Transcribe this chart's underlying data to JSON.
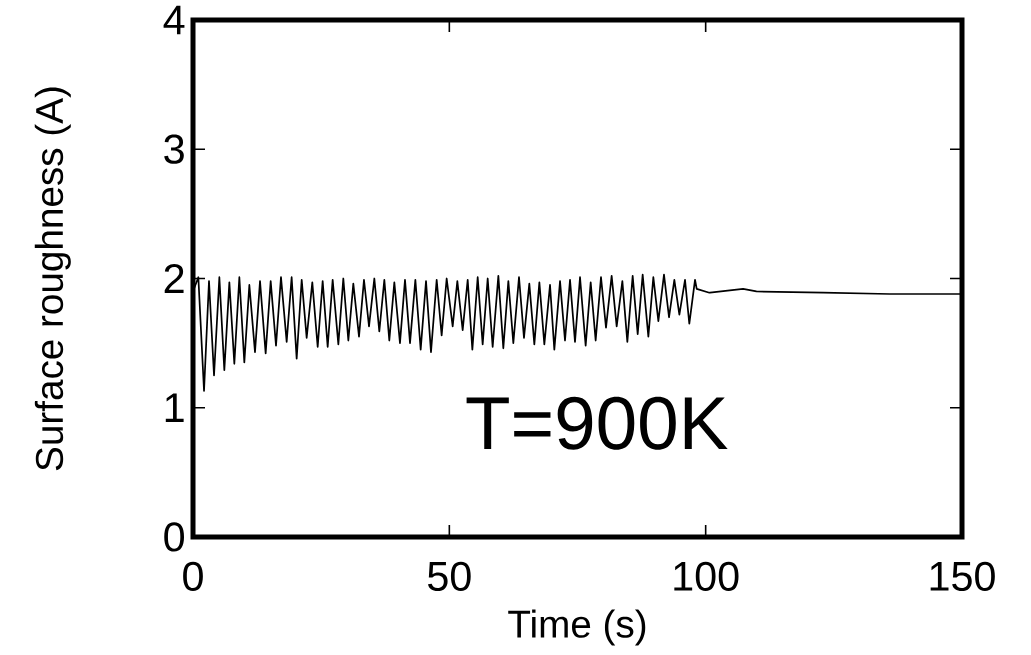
{
  "chart_data": {
    "type": "line",
    "xlabel": "Time (s)",
    "ylabel": "Surface roughness (A)",
    "annotations": [
      "T=900K"
    ],
    "xlim": [
      0,
      150
    ],
    "ylim": [
      0,
      4
    ],
    "xticks": [
      0,
      50,
      100,
      150
    ],
    "yticks": [
      0,
      1,
      2,
      3,
      4
    ],
    "marker": "none",
    "line_style": "solid",
    "series": [
      {
        "color": "#000000",
        "x": [
          0,
          1.04,
          2.15,
          3.12,
          4.1,
          5.14,
          6.11,
          7.09,
          8.06,
          9.04,
          10.01,
          10.99,
          12.09,
          13.07,
          14.17,
          15.15,
          16.19,
          17.16,
          18.27,
          19.24,
          20.22,
          21.2,
          22.17,
          23.27,
          24.32,
          25.29,
          26.27,
          27.24,
          28.35,
          29.32,
          30.3,
          31.27,
          32.38,
          33.35,
          34.33,
          35.37,
          36.34,
          37.32,
          38.29,
          39.27,
          40.37,
          41.35,
          42.33,
          43.37,
          44.41,
          45.45,
          46.42,
          47.53,
          48.5,
          49.48,
          50.65,
          51.56,
          52.6,
          53.58,
          54.49,
          55.53,
          56.5,
          57.48,
          58.45,
          59.56,
          60.53,
          61.51,
          62.48,
          63.59,
          64.56,
          65.6,
          66.58,
          67.56,
          68.53,
          69.64,
          70.48,
          71.59,
          72.56,
          73.54,
          74.51,
          75.49,
          76.59,
          77.57,
          78.54,
          79.58,
          80.56,
          81.66,
          82.64,
          83.75,
          84.72,
          85.76,
          86.74,
          87.71,
          88.82,
          89.79,
          90.77,
          91.87,
          92.85,
          93.89,
          94.87,
          95.97,
          96.81,
          97.92,
          98.25,
          100.72,
          100.84,
          107.3,
          109.9,
          122.9,
          135.9,
          150
        ],
        "values": [
          1.9,
          2.01,
          1.13,
          1.98,
          1.25,
          2.01,
          1.29,
          1.97,
          1.34,
          2.01,
          1.35,
          1.95,
          1.43,
          1.98,
          1.42,
          1.98,
          1.48,
          2.01,
          1.51,
          2.01,
          1.38,
          1.99,
          1.54,
          1.97,
          1.47,
          1.98,
          1.47,
          1.99,
          1.49,
          2.0,
          1.52,
          1.96,
          1.55,
          1.99,
          1.63,
          2.0,
          1.59,
          1.99,
          1.52,
          1.97,
          1.5,
          1.99,
          1.5,
          1.99,
          1.45,
          1.98,
          1.43,
          1.99,
          1.56,
          2.0,
          1.63,
          1.98,
          1.6,
          1.99,
          1.45,
          2.01,
          1.49,
          2.0,
          1.47,
          2.02,
          1.46,
          1.98,
          1.5,
          2.01,
          1.54,
          1.96,
          1.49,
          1.97,
          1.49,
          1.95,
          1.45,
          1.98,
          1.52,
          1.99,
          1.51,
          2.01,
          1.48,
          1.97,
          1.52,
          2.01,
          1.62,
          2.02,
          1.63,
          1.98,
          1.51,
          2.02,
          1.57,
          2.03,
          1.55,
          2.01,
          1.67,
          2.03,
          1.7,
          1.99,
          1.72,
          1.99,
          1.65,
          1.99,
          1.92,
          1.89,
          1.89,
          1.92,
          1.9,
          1.89,
          1.88,
          1.88
        ]
      }
    ]
  }
}
